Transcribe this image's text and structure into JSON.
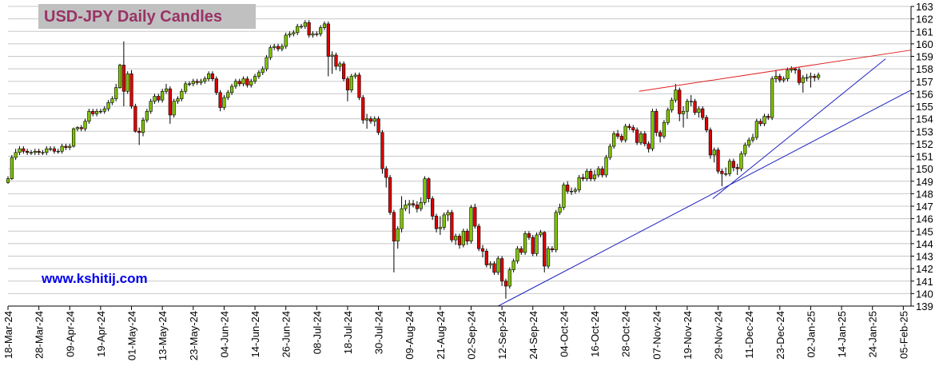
{
  "chart_data": {
    "type": "candlestick",
    "title": "USD-JPY Daily Candles",
    "annotation": "www.kshitij.com",
    "up_color": "#7fc400",
    "down_color": "#dd0000",
    "grid": true,
    "ylim": [
      139,
      163
    ],
    "yticks": [
      139,
      140,
      141,
      142,
      143,
      144,
      145,
      146,
      147,
      148,
      149,
      150,
      151,
      152,
      153,
      154,
      155,
      156,
      157,
      158,
      159,
      160,
      161,
      162,
      163
    ],
    "xlim": [
      0,
      234
    ],
    "xticks": [
      {
        "value": 0,
        "label": "18-Mar-24"
      },
      {
        "value": 8,
        "label": "28-Mar-24"
      },
      {
        "value": 16,
        "label": "09-Apr-24"
      },
      {
        "value": 24,
        "label": "19-Apr-24"
      },
      {
        "value": 32,
        "label": "01-May-24"
      },
      {
        "value": 40,
        "label": "13-May-24"
      },
      {
        "value": 48,
        "label": "23-May-24"
      },
      {
        "value": 56,
        "label": "04-Jun-24"
      },
      {
        "value": 64,
        "label": "14-Jun-24"
      },
      {
        "value": 72,
        "label": "26-Jun-24"
      },
      {
        "value": 80,
        "label": "08-Jul-24"
      },
      {
        "value": 88,
        "label": "18-Jul-24"
      },
      {
        "value": 96,
        "label": "30-Jul-24"
      },
      {
        "value": 104,
        "label": "09-Aug-24"
      },
      {
        "value": 112,
        "label": "21-Aug-24"
      },
      {
        "value": 120,
        "label": "02-Sep-24"
      },
      {
        "value": 128,
        "label": "12-Sep-24"
      },
      {
        "value": 136,
        "label": "24-Sep-24"
      },
      {
        "value": 144,
        "label": "04-Oct-24"
      },
      {
        "value": 152,
        "label": "16-Oct-24"
      },
      {
        "value": 160,
        "label": "28-Oct-24"
      },
      {
        "value": 168,
        "label": "07-Nov-24"
      },
      {
        "value": 176,
        "label": "19-Nov-24"
      },
      {
        "value": 184,
        "label": "29-Nov-24"
      },
      {
        "value": 192,
        "label": "11-Dec-24"
      },
      {
        "value": 200,
        "label": "23-Dec-24"
      },
      {
        "value": 208,
        "label": "02-Jan-25"
      },
      {
        "value": 216,
        "label": "14-Jan-25"
      },
      {
        "value": 224,
        "label": "24-Jan-25"
      },
      {
        "value": 232,
        "label": "05-Feb-25"
      }
    ],
    "open": [
      148.9,
      149.2,
      150.9,
      151.3,
      151.6,
      151.4,
      151.3,
      151.3,
      151.4,
      151.3,
      151.3,
      151.6,
      151.6,
      151.4,
      151.4,
      151.8,
      151.7,
      151.8,
      153.2,
      153.3,
      153.2,
      153.8,
      154.6,
      154.4,
      154.6,
      154.6,
      154.8,
      155.3,
      155.6,
      156.5,
      158.3,
      156.2,
      157.6,
      155.0,
      153.0,
      152.9,
      153.9,
      154.6,
      155.4,
      155.8,
      155.5,
      156.2,
      156.4,
      154.3,
      155.4,
      155.6,
      156.2,
      156.8,
      156.8,
      157.0,
      156.9,
      157.0,
      157.2,
      157.6,
      157.2,
      156.1,
      154.9,
      155.7,
      156.1,
      156.6,
      157.0,
      156.8,
      157.2,
      156.7,
      157.0,
      157.4,
      157.7,
      158.0,
      158.9,
      159.7,
      159.8,
      159.6,
      159.8,
      160.7,
      160.8,
      160.9,
      161.4,
      161.4,
      161.7,
      160.7,
      160.8,
      160.8,
      161.3,
      161.6,
      159.0,
      159.1,
      158.2,
      158.4,
      157.2,
      156.3,
      157.4,
      157.5,
      155.7,
      153.9,
      154.0,
      153.8,
      154.0,
      152.9,
      150.0,
      149.3,
      146.5,
      144.2,
      145.2,
      146.8,
      147.1,
      147.2,
      147.1,
      146.8,
      147.3,
      149.2,
      147.6,
      146.2,
      145.2,
      145.3,
      146.3,
      146.5,
      144.3,
      144.6,
      143.9,
      145.0,
      144.2,
      146.9,
      145.4,
      143.6,
      143.4,
      142.3,
      142.4,
      141.7,
      142.8,
      141.0,
      140.6,
      141.9,
      142.6,
      143.6,
      143.3,
      144.8,
      144.5,
      143.2,
      144.7,
      144.9,
      142.2,
      143.6,
      143.5,
      146.5,
      146.9,
      148.7,
      148.2,
      148.2,
      148.3,
      149.3,
      149.2,
      149.8,
      149.2,
      149.5,
      150.0,
      149.5,
      150.9,
      151.8,
      152.8,
      152.6,
      152.3,
      153.4,
      153.3,
      153.1,
      152.1,
      152.8,
      152.0,
      151.6,
      154.6,
      152.9,
      152.6,
      153.7,
      154.7,
      155.5,
      156.3,
      154.4,
      154.6,
      155.4,
      155.4,
      154.5,
      154.8,
      154.1,
      153.1,
      151.1,
      151.5,
      149.8,
      149.6,
      149.6,
      150.6,
      150.1,
      150.0,
      151.2,
      151.9,
      152.3,
      152.5,
      153.8,
      153.6,
      154.2,
      154.1,
      157.2,
      157.4,
      157.1,
      157.2,
      157.9,
      158.0,
      157.9,
      156.9,
      157.3,
      157.3,
      157.4,
      157.3
    ],
    "high": [
      149.4,
      151.1,
      151.6,
      151.8,
      151.8,
      151.6,
      151.5,
      151.6,
      151.6,
      151.5,
      151.8,
      151.8,
      151.8,
      151.6,
      152.0,
      152.0,
      152.0,
      153.3,
      153.4,
      153.5,
      154.0,
      154.8,
      154.8,
      154.8,
      154.8,
      155.0,
      155.5,
      155.8,
      156.8,
      158.4,
      160.2,
      157.8,
      157.9,
      155.2,
      153.3,
      154.1,
      154.8,
      155.6,
      156.0,
      156.0,
      156.4,
      156.8,
      156.6,
      155.6,
      155.8,
      156.4,
      157.0,
      157.0,
      157.2,
      157.2,
      157.2,
      157.4,
      157.8,
      157.8,
      157.4,
      156.3,
      155.9,
      156.3,
      156.8,
      157.2,
      157.2,
      157.4,
      157.4,
      157.2,
      157.6,
      157.9,
      158.2,
      159.1,
      159.9,
      160.0,
      160.0,
      160.0,
      160.9,
      161.0,
      161.1,
      161.6,
      161.6,
      161.9,
      161.9,
      161.0,
      161.0,
      161.5,
      161.8,
      161.8,
      159.4,
      159.3,
      158.6,
      158.6,
      157.4,
      157.6,
      157.7,
      157.7,
      155.9,
      154.4,
      154.2,
      154.2,
      154.2,
      153.1,
      150.2,
      149.5,
      146.7,
      145.4,
      147.8,
      147.5,
      147.5,
      147.5,
      147.4,
      147.7,
      149.4,
      149.3,
      147.8,
      146.4,
      146.2,
      146.5,
      146.7,
      146.7,
      144.8,
      144.8,
      145.2,
      145.2,
      147.1,
      147.2,
      145.6,
      143.9,
      143.6,
      142.6,
      142.6,
      143.0,
      143.0,
      141.2,
      142.1,
      142.8,
      143.8,
      143.8,
      145.0,
      145.0,
      144.7,
      144.9,
      145.1,
      145.0,
      143.8,
      143.8,
      146.7,
      147.2,
      148.9,
      149.0,
      148.5,
      148.5,
      149.5,
      149.6,
      150.0,
      150.0,
      149.9,
      150.2,
      150.2,
      151.1,
      152.0,
      153.0,
      153.1,
      152.8,
      153.6,
      153.6,
      153.5,
      153.3,
      153.0,
      153.0,
      152.2,
      154.8,
      154.8,
      153.1,
      153.9,
      154.9,
      155.7,
      156.8,
      156.5,
      155.0,
      155.6,
      155.9,
      155.6,
      155.0,
      155.0,
      154.3,
      153.3,
      151.7,
      151.7,
      150.0,
      150.1,
      150.8,
      150.8,
      150.4,
      151.4,
      152.1,
      152.5,
      152.8,
      154.0,
      154.0,
      154.4,
      154.4,
      157.4,
      157.9,
      157.6,
      157.4,
      158.1,
      158.2,
      158.1,
      158.1,
      157.5,
      157.6,
      157.7,
      157.6,
      157.7
    ],
    "low": [
      148.8,
      149.1,
      150.7,
      151.1,
      151.2,
      151.1,
      151.1,
      151.1,
      151.1,
      151.1,
      151.1,
      151.4,
      151.2,
      151.2,
      151.2,
      151.5,
      151.5,
      151.7,
      153.0,
      153.0,
      153.0,
      153.6,
      154.2,
      154.2,
      154.4,
      154.4,
      154.6,
      155.1,
      155.4,
      156.4,
      155.0,
      156.0,
      154.8,
      152.9,
      151.9,
      152.6,
      153.7,
      154.4,
      155.2,
      155.3,
      155.3,
      156.0,
      153.6,
      154.1,
      155.2,
      155.4,
      156.0,
      156.6,
      156.6,
      156.7,
      156.7,
      156.8,
      157.0,
      157.0,
      155.9,
      154.6,
      154.7,
      155.5,
      155.9,
      156.4,
      156.6,
      156.6,
      156.5,
      156.5,
      156.8,
      157.2,
      157.5,
      157.8,
      158.7,
      159.5,
      159.4,
      159.4,
      159.6,
      160.5,
      160.6,
      160.7,
      161.2,
      161.2,
      160.5,
      160.5,
      160.6,
      160.6,
      161.1,
      157.4,
      157.6,
      157.9,
      157.8,
      157.0,
      155.4,
      156.1,
      157.2,
      155.5,
      153.6,
      153.2,
      153.6,
      153.4,
      152.7,
      149.6,
      148.5,
      146.3,
      141.7,
      143.6,
      144.9,
      146.6,
      146.4,
      146.9,
      146.5,
      146.6,
      147.1,
      147.3,
      145.9,
      144.9,
      144.7,
      145.1,
      145.8,
      144.1,
      143.9,
      143.6,
      143.7,
      143.9,
      144.0,
      145.2,
      143.4,
      142.9,
      142.1,
      142.0,
      141.5,
      141.5,
      140.6,
      139.6,
      140.4,
      141.7,
      142.4,
      143.1,
      143.1,
      144.3,
      143.0,
      143.0,
      144.5,
      141.7,
      142.0,
      143.3,
      143.3,
      146.3,
      146.7,
      148.0,
      147.9,
      148.0,
      148.1,
      149.0,
      149.0,
      149.0,
      149.0,
      149.3,
      149.3,
      149.3,
      150.7,
      151.6,
      152.4,
      152.1,
      152.1,
      153.1,
      152.9,
      151.9,
      151.9,
      151.8,
      151.3,
      151.4,
      152.6,
      152.1,
      152.4,
      153.5,
      154.5,
      155.3,
      153.8,
      153.3,
      154.0,
      155.0,
      154.3,
      154.1,
      153.9,
      152.9,
      150.8,
      150.5,
      149.6,
      148.6,
      149.4,
      149.4,
      149.8,
      149.5,
      149.8,
      151.0,
      151.7,
      152.1,
      152.3,
      153.4,
      153.4,
      153.9,
      153.9,
      156.9,
      156.9,
      156.9,
      157.0,
      157.7,
      157.6,
      156.7,
      156.1,
      157.0,
      156.5,
      157.0,
      157.1
    ],
    "close": [
      149.2,
      150.9,
      151.3,
      151.6,
      151.4,
      151.3,
      151.3,
      151.4,
      151.3,
      151.3,
      151.6,
      151.6,
      151.4,
      151.4,
      151.8,
      151.7,
      151.8,
      153.2,
      153.3,
      153.2,
      153.8,
      154.6,
      154.4,
      154.6,
      154.6,
      154.8,
      155.3,
      155.6,
      156.5,
      158.3,
      156.2,
      157.6,
      155.0,
      153.0,
      152.9,
      153.9,
      154.6,
      155.4,
      155.8,
      155.5,
      156.2,
      156.4,
      154.3,
      155.4,
      155.6,
      156.2,
      156.8,
      156.8,
      157.0,
      156.9,
      157.0,
      157.2,
      157.6,
      157.2,
      156.1,
      154.9,
      155.7,
      156.1,
      156.6,
      157.0,
      156.8,
      157.2,
      156.7,
      157.0,
      157.4,
      157.7,
      158.0,
      158.9,
      159.7,
      159.8,
      159.6,
      159.8,
      160.7,
      160.8,
      160.9,
      161.4,
      161.4,
      161.7,
      160.7,
      160.8,
      160.8,
      161.3,
      161.6,
      159.0,
      159.1,
      158.2,
      158.4,
      157.2,
      156.3,
      157.4,
      157.5,
      155.7,
      153.9,
      154.0,
      153.8,
      154.0,
      152.9,
      150.0,
      149.3,
      146.5,
      144.2,
      145.2,
      146.8,
      147.1,
      147.2,
      147.1,
      146.8,
      147.3,
      149.2,
      147.6,
      146.2,
      145.2,
      145.3,
      146.3,
      146.5,
      144.3,
      144.6,
      143.9,
      145.0,
      144.2,
      146.9,
      145.4,
      143.6,
      143.4,
      142.3,
      142.4,
      141.7,
      142.8,
      141.0,
      140.6,
      141.9,
      142.6,
      143.6,
      143.3,
      144.8,
      144.5,
      143.2,
      144.7,
      144.9,
      142.2,
      143.6,
      143.5,
      146.5,
      146.9,
      148.7,
      148.2,
      148.2,
      148.3,
      149.3,
      149.2,
      149.8,
      149.2,
      149.5,
      150.0,
      149.5,
      150.9,
      151.8,
      152.8,
      152.6,
      152.3,
      153.4,
      153.3,
      153.1,
      152.1,
      152.8,
      152.0,
      151.6,
      154.6,
      152.9,
      152.6,
      153.7,
      154.7,
      155.5,
      156.3,
      154.4,
      154.6,
      155.4,
      155.4,
      154.5,
      154.8,
      154.1,
      153.1,
      151.1,
      151.5,
      149.8,
      149.6,
      149.6,
      150.6,
      150.1,
      150.0,
      151.2,
      151.9,
      152.3,
      152.5,
      153.8,
      153.6,
      154.2,
      154.1,
      157.2,
      157.4,
      157.1,
      157.2,
      157.9,
      158.0,
      157.9,
      156.9,
      157.3,
      157.3,
      157.4,
      157.3,
      157.5
    ],
    "trend_lines": [
      {
        "color": "#e02020",
        "x": [
          163.5,
          234
        ],
        "y": [
          156.2,
          159.5
        ]
      },
      {
        "color": "#2020c0",
        "x": [
          127,
          234
        ],
        "y": [
          139.0,
          156.3
        ]
      },
      {
        "color": "#2020c0",
        "x": [
          182.6,
          227.4
        ],
        "y": [
          147.6,
          158.8
        ]
      }
    ]
  }
}
